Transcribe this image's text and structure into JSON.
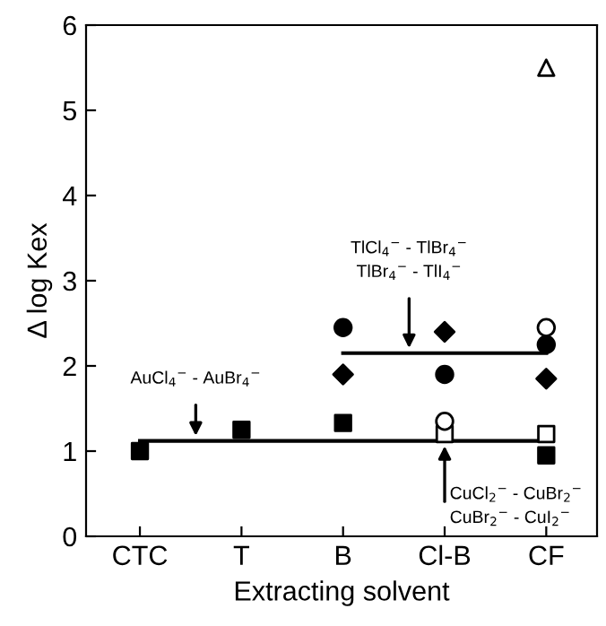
{
  "chart_data": {
    "type": "scatter",
    "xlabel": "Extracting solvent",
    "ylabel": "Δ log Kex",
    "categories": [
      "CTC",
      "T",
      "B",
      "Cl-B",
      "CF"
    ],
    "ylim": [
      0,
      6
    ],
    "yticks": [
      0,
      1,
      2,
      3,
      4,
      5,
      6
    ],
    "grid": false,
    "legend": false,
    "series": [
      {
        "marker": "square",
        "color": "#000000",
        "values": [
          1.0,
          1.25,
          1.33,
          null,
          0.95
        ]
      },
      {
        "marker": "circle",
        "color": "#000000",
        "values": [
          null,
          null,
          2.45,
          1.9,
          2.25
        ]
      },
      {
        "marker": "diamond",
        "color": "#000000",
        "values": [
          null,
          null,
          1.9,
          2.4,
          1.85
        ]
      },
      {
        "marker": "circle",
        "color": "#ffffff",
        "values": [
          null,
          null,
          null,
          1.35,
          2.45
        ]
      },
      {
        "marker": "square",
        "color": "#ffffff",
        "values": [
          null,
          null,
          null,
          1.2,
          1.2
        ]
      },
      {
        "marker": "triangle",
        "color": "#ffffff",
        "values": [
          null,
          null,
          null,
          null,
          5.5
        ]
      },
      {
        "type": "line",
        "color": "#000000",
        "values": [
          1.12,
          1.12,
          1.12,
          1.12,
          1.12
        ]
      },
      {
        "type": "line",
        "color": "#000000",
        "values": [
          null,
          null,
          2.15,
          2.15,
          2.15
        ]
      }
    ],
    "annotations": [
      "AuCl$_{4}$$^{−}$ - AuBr$_{4}$$^{−}$",
      "TlCl$_{4}$$^{−}$ - TlBr$_{4}$$^{−}$\nTlBr$_{4}$$^{−}$ - TlI$_{4}$$^{−}$",
      "CuCl$_{2}$$^{−}$ - CuBr$_{2}$$^{−}$\nCuBr$_{2}$$^{−}$ - CuI$_{2}$$^{−}$"
    ]
  }
}
